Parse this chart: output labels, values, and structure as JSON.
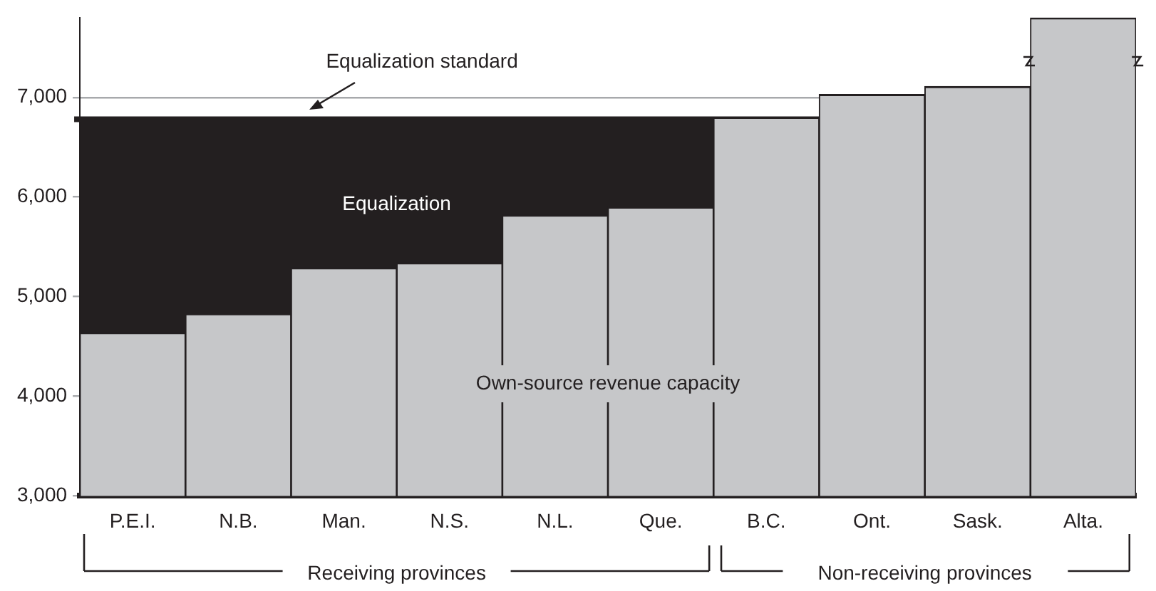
{
  "chart_data": {
    "type": "bar",
    "categories": [
      "P.E.I.",
      "N.B.",
      "Man.",
      "N.S.",
      "N.L.",
      "Que.",
      "B.C.",
      "Ont.",
      "Sask.",
      "Alta."
    ],
    "series": [
      {
        "name": "Own-source revenue capacity",
        "color": "#c6c7c9",
        "values": [
          4640,
          4830,
          5290,
          5340,
          5820,
          5900,
          6800,
          7030,
          7110,
          7800
        ]
      }
    ],
    "ylim": [
      3000,
      7800
    ],
    "yticks": [
      {
        "value": 3000,
        "label": "3,000"
      },
      {
        "value": 4000,
        "label": "4,000"
      },
      {
        "value": 5000,
        "label": "5,000"
      },
      {
        "value": 6000,
        "label": "6,000"
      },
      {
        "value": 7000,
        "label": "7,000"
      }
    ],
    "grid": "y",
    "legend": false,
    "bands": [
      {
        "axis": "y",
        "from": 4640,
        "to": 6780,
        "label": "Equalization",
        "color": "#231f20"
      }
    ],
    "ref_lines": [
      {
        "axis": "y",
        "value": 6780,
        "label": "Equalization standard",
        "color": "#231f20"
      }
    ],
    "annotations": [
      "Receiving provinces",
      "Non-receiving provinces"
    ]
  }
}
